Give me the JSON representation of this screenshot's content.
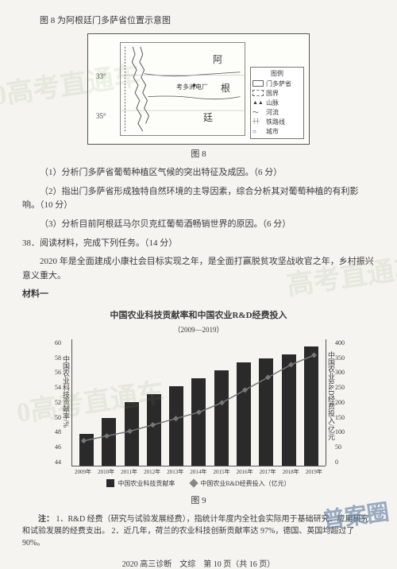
{
  "header": {
    "caption": "图 8 为阿根廷门多萨省位置示意图"
  },
  "map": {
    "fig_label": "图 8",
    "region_labels": {
      "top": "阿",
      "mid": "根",
      "bot": "廷",
      "station": "考多洲电厂"
    },
    "lat_labels": [
      "33°",
      "35°"
    ],
    "legend_title": "图例",
    "legend_items": [
      {
        "label": "门多萨省",
        "fill": "#ffffff"
      },
      {
        "label": "国界",
        "fill": "dash"
      },
      {
        "label": "山脉",
        "fill": "hatch"
      },
      {
        "label": "河流",
        "fill": "line"
      },
      {
        "label": "铁路线",
        "fill": "rail"
      },
      {
        "label": "城市",
        "fill": "dot"
      }
    ]
  },
  "questions": {
    "q1": "（1）分析门多萨省葡萄种植区气候的突出特征及成因。（6 分）",
    "q2": "（2）指出门多萨省形成独特自然环境的主导因素，综合分析其对葡萄种植的有利影响。（10 分）",
    "q3": "（3）分析目前阿根廷马尔贝克红葡萄酒畅销世界的原因。（6 分）"
  },
  "q38": {
    "num": "38．阅读材料，完成下列任务。（14 分）",
    "intro": "2020 年是全面建成小康社会目标实现之年，是全面打赢脱贫攻坚战收官之年，乡村振兴意义重大。",
    "mat_label": "材料一"
  },
  "chart": {
    "type": "bar+line",
    "title": "中国农业科技贡献率和中国农业R&D经费投入",
    "subtitle": "（2009—2019）",
    "fig_label": "图 9",
    "categories": [
      "2009年",
      "2010年",
      "2011年",
      "2012年",
      "2013年",
      "2014年",
      "2015年",
      "2016年",
      "2017年",
      "2018年",
      "2019年"
    ],
    "bar_values": [
      48,
      50,
      52,
      53,
      54,
      55,
      56,
      57,
      57.5,
      58,
      59
    ],
    "line_values": [
      80,
      95,
      110,
      130,
      150,
      170,
      200,
      240,
      280,
      320,
      350
    ],
    "y_left": {
      "label": "中国农业科技贡献率/%",
      "min": 44,
      "max": 60,
      "ticks": [
        60,
        58,
        56,
        54,
        52,
        50,
        48,
        46,
        44
      ]
    },
    "y_right": {
      "label": "中国农业R&D经费投入/亿元",
      "min": 0,
      "max": 400,
      "ticks": [
        400,
        350,
        300,
        250,
        200,
        150,
        100,
        50,
        0
      ]
    },
    "bar_color": "#2a2a2a",
    "line_color": "#777777",
    "background": "#fdfdf9",
    "legend": {
      "bar": "中国农业科技贡献率",
      "line": "中国农业R&D经费投入（亿元）"
    }
  },
  "notes": {
    "label": "注：",
    "n1": "1．R&D 经费（研究与试验发展经费），指统计年度内全社会实际用于基础研究、应用研究和试验发展的经费支出。",
    "n2": "2．近几年，荷兰的农业科技创新贡献率达 97%，德国、英国均超过了 90%。"
  },
  "footer": {
    "text": "2020 高三诊断　文综　第 10 页（共 16 页）"
  },
  "watermarks": {
    "w1": "0高考直通车",
    "w2": "高考直通车",
    "w3": "0高考直通车",
    "w4": "普案圈"
  }
}
